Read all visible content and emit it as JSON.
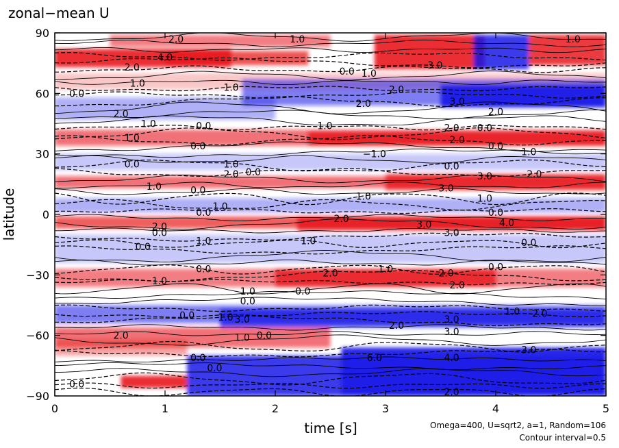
{
  "chart_data": {
    "type": "heatmap",
    "title": "zonal−mean U",
    "xlabel": "time [s]",
    "ylabel": "latitude",
    "xlim": [
      0,
      5
    ],
    "ylim": [
      -90,
      90
    ],
    "x_ticks": [
      "0",
      "1",
      "2",
      "3",
      "4",
      "5"
    ],
    "y_ticks": [
      "90",
      "60",
      "30",
      "0",
      "−30",
      "−60",
      "−90"
    ],
    "colors": {
      "positive": "#e8171d",
      "negative": "#1a1ae8",
      "contour": "#000000"
    },
    "contour_labels": [
      {
        "t": 1.1,
        "lat": 87,
        "text": "2.0"
      },
      {
        "t": 2.2,
        "lat": 87,
        "text": "1.0"
      },
      {
        "t": 4.7,
        "lat": 87,
        "text": "1.0"
      },
      {
        "t": 1.0,
        "lat": 78,
        "text": "4.0"
      },
      {
        "t": 3.45,
        "lat": 74,
        "text": "3.0"
      },
      {
        "t": 0.7,
        "lat": 73,
        "text": "2.0"
      },
      {
        "t": 2.65,
        "lat": 71,
        "text": "0.0"
      },
      {
        "t": 2.85,
        "lat": 70,
        "text": "1.0"
      },
      {
        "t": 0.75,
        "lat": 65,
        "text": "1.0"
      },
      {
        "t": 1.6,
        "lat": 63,
        "text": "1.0"
      },
      {
        "t": 3.1,
        "lat": 62,
        "text": "2.0"
      },
      {
        "t": 0.2,
        "lat": 60,
        "text": "0.0"
      },
      {
        "t": 2.8,
        "lat": 55,
        "text": "2.0"
      },
      {
        "t": 3.65,
        "lat": 56,
        "text": "3.0"
      },
      {
        "t": 4.0,
        "lat": 51,
        "text": "2.0"
      },
      {
        "t": 0.6,
        "lat": 50,
        "text": "2.0"
      },
      {
        "t": 0.85,
        "lat": 45,
        "text": "1.0"
      },
      {
        "t": 1.35,
        "lat": 44,
        "text": "0.0"
      },
      {
        "t": 2.45,
        "lat": 44,
        "text": "1.0"
      },
      {
        "t": 3.6,
        "lat": 43,
        "text": "2.0"
      },
      {
        "t": 3.9,
        "lat": 43,
        "text": "0.0"
      },
      {
        "t": 0.7,
        "lat": 38,
        "text": "1.0"
      },
      {
        "t": 3.65,
        "lat": 37,
        "text": "2.0"
      },
      {
        "t": 1.3,
        "lat": 34,
        "text": "0.0"
      },
      {
        "t": 4.0,
        "lat": 34,
        "text": "0.0"
      },
      {
        "t": 2.9,
        "lat": 30,
        "text": "−1.0"
      },
      {
        "t": 4.3,
        "lat": 31,
        "text": "1.0"
      },
      {
        "t": 0.7,
        "lat": 25,
        "text": "0.0"
      },
      {
        "t": 1.6,
        "lat": 25,
        "text": "1.0"
      },
      {
        "t": 3.6,
        "lat": 24,
        "text": "0.0"
      },
      {
        "t": 1.6,
        "lat": 20,
        "text": "2.0"
      },
      {
        "t": 1.8,
        "lat": 21,
        "text": "0.0"
      },
      {
        "t": 4.35,
        "lat": 20,
        "text": "2.0"
      },
      {
        "t": 3.9,
        "lat": 19,
        "text": "3.0"
      },
      {
        "t": 0.9,
        "lat": 14,
        "text": "1.0"
      },
      {
        "t": 1.3,
        "lat": 12,
        "text": "0.0"
      },
      {
        "t": 3.55,
        "lat": 13,
        "text": "3.0"
      },
      {
        "t": 2.8,
        "lat": 9,
        "text": "1.0"
      },
      {
        "t": 3.9,
        "lat": 8,
        "text": "1.0"
      },
      {
        "t": 1.5,
        "lat": 4,
        "text": "1.0"
      },
      {
        "t": 1.35,
        "lat": 1,
        "text": "0.0"
      },
      {
        "t": 4.0,
        "lat": 1,
        "text": "0.0"
      },
      {
        "t": 2.6,
        "lat": -2,
        "text": "2.0"
      },
      {
        "t": 3.35,
        "lat": -5,
        "text": "3.0"
      },
      {
        "t": 4.1,
        "lat": -4,
        "text": "4.0"
      },
      {
        "t": 0.95,
        "lat": -6,
        "text": "2.0"
      },
      {
        "t": 0.95,
        "lat": -9,
        "text": "0.0"
      },
      {
        "t": 3.6,
        "lat": -9,
        "text": "3.0"
      },
      {
        "t": 0.8,
        "lat": -16,
        "text": "0.0"
      },
      {
        "t": 1.35,
        "lat": -13,
        "text": "1.0"
      },
      {
        "t": 2.3,
        "lat": -13,
        "text": "1.0"
      },
      {
        "t": 4.3,
        "lat": -14,
        "text": "0.0"
      },
      {
        "t": 1.35,
        "lat": -27,
        "text": "0.0"
      },
      {
        "t": 3.0,
        "lat": -27,
        "text": "1.0"
      },
      {
        "t": 4.0,
        "lat": -26,
        "text": "0.0"
      },
      {
        "t": 2.5,
        "lat": -29,
        "text": "2.0"
      },
      {
        "t": 3.55,
        "lat": -29,
        "text": "2.0"
      },
      {
        "t": 0.95,
        "lat": -33,
        "text": "1.0"
      },
      {
        "t": 3.65,
        "lat": -35,
        "text": "2.0"
      },
      {
        "t": 1.75,
        "lat": -38,
        "text": "1.0"
      },
      {
        "t": 2.25,
        "lat": -38,
        "text": "0.0"
      },
      {
        "t": 1.75,
        "lat": -43,
        "text": "0.0"
      },
      {
        "t": 4.15,
        "lat": -48,
        "text": "1.0"
      },
      {
        "t": 4.4,
        "lat": -49,
        "text": "2.0"
      },
      {
        "t": 1.2,
        "lat": -50,
        "text": "0.0"
      },
      {
        "t": 1.55,
        "lat": -51,
        "text": "1.0"
      },
      {
        "t": 1.7,
        "lat": -52,
        "text": "3.0"
      },
      {
        "t": 3.6,
        "lat": -52,
        "text": "3.0"
      },
      {
        "t": 3.1,
        "lat": -55,
        "text": "2.0"
      },
      {
        "t": 3.6,
        "lat": -58,
        "text": "3.0"
      },
      {
        "t": 0.6,
        "lat": -60,
        "text": "2.0"
      },
      {
        "t": 1.7,
        "lat": -61,
        "text": "1.0"
      },
      {
        "t": 1.9,
        "lat": -60,
        "text": "0.0"
      },
      {
        "t": 4.3,
        "lat": -67,
        "text": "3.0"
      },
      {
        "t": 1.3,
        "lat": -71,
        "text": "0.0"
      },
      {
        "t": 3.6,
        "lat": -71,
        "text": "4.0"
      },
      {
        "t": 2.9,
        "lat": -71,
        "text": "6.0"
      },
      {
        "t": 1.45,
        "lat": -76,
        "text": "0.0"
      },
      {
        "t": 0.2,
        "lat": -84,
        "text": "0.0"
      },
      {
        "t": 3.6,
        "lat": -88,
        "text": "2.0"
      }
    ]
  },
  "footer": {
    "params": "Omega=400, U=sqrt2, a=1, Random=106",
    "contour_interval": "Contour interval=0.5"
  }
}
